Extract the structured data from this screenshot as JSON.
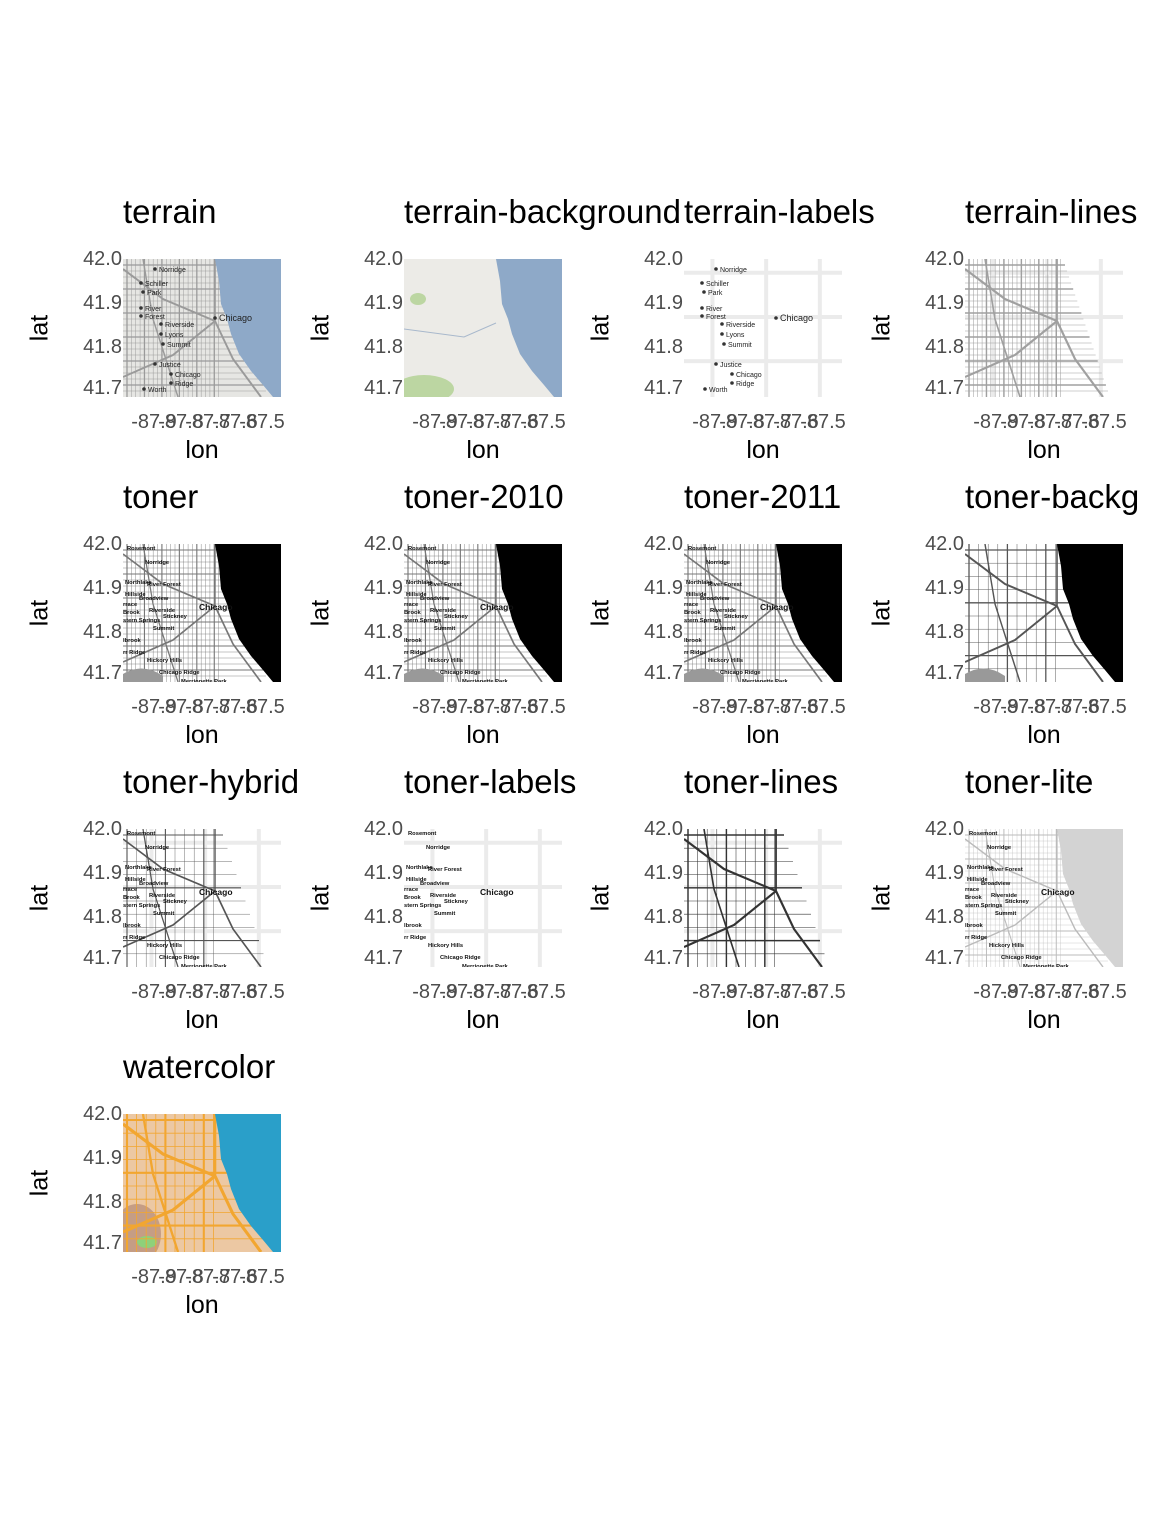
{
  "axes": {
    "xlabel": "lon",
    "ylabel": "lat",
    "x_ticks": [
      "-87.9",
      "-87.8",
      "-87.7",
      "-87.6",
      "-87.5"
    ],
    "y_ticks": [
      "42.0",
      "41.9",
      "41.8",
      "41.7"
    ]
  },
  "place_labels": {
    "norridge": "Norridge",
    "schiller": "Schiller",
    "park": "Park",
    "river": "River",
    "forest": "Forest",
    "riverside": "Riverside",
    "lyons": "Lyons",
    "summit": "Summit",
    "chicago": "Chicago",
    "justice": "Justice",
    "chicago_ridge_1": "Chicago",
    "chicago_ridge_2": "Ridge",
    "worth": "Worth",
    "rosemont": "Rosemont",
    "northlake": "Northlake",
    "river_forest": "River Forest",
    "hillside": "Hillside",
    "broadview": "Broadview",
    "stickney": "Stickney",
    "western_springs": "stern Springs",
    "brook": "Brook",
    "hickory_hills": "Hickory Hills",
    "chicago_ridge": "Chicago Ridge",
    "merrionette_park": "Merrionette Park",
    "lbrook": "lbrook",
    "rrace": "rrace",
    "r_ridge": "rr Ridge"
  },
  "facets": [
    {
      "title": "terrain",
      "style": "terrain"
    },
    {
      "title": "terrain-background",
      "style": "terrain-background"
    },
    {
      "title": "terrain-labels",
      "style": "terrain-labels"
    },
    {
      "title": "terrain-lines",
      "style": "terrain-lines"
    },
    {
      "title": "toner",
      "style": "toner"
    },
    {
      "title": "toner-2010",
      "style": "toner"
    },
    {
      "title": "toner-2011",
      "style": "toner"
    },
    {
      "title": "toner-backg",
      "style": "toner-background"
    },
    {
      "title": "toner-hybrid",
      "style": "toner-hybrid"
    },
    {
      "title": "toner-labels",
      "style": "toner-labels"
    },
    {
      "title": "toner-lines",
      "style": "toner-lines"
    },
    {
      "title": "toner-lite",
      "style": "toner-lite"
    },
    {
      "title": "watercolor",
      "style": "watercolor"
    }
  ],
  "colors": {
    "terrain_land": "#e6e6e3",
    "terrain_water": "#8ea9c8",
    "terrain_green": "#bcd6a2",
    "toner_water": "#000000",
    "toner_lite_water": "#d3d3d3",
    "watercolor_land": "#ecc8a3",
    "watercolor_water": "#2a9fc9",
    "watercolor_road": "#f2a630",
    "grid": "#ebebeb"
  }
}
